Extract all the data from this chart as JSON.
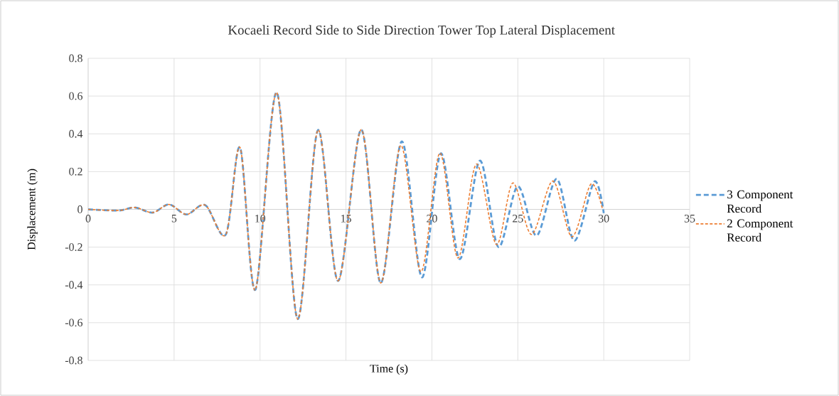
{
  "chart_data": {
    "type": "line",
    "title": "Kocaeli Record Side to Side Direction  Tower Top Lateral Displacement",
    "xlabel": "Time  (s)",
    "ylabel": "Displacement  (m)",
    "xlim": [
      0,
      35
    ],
    "xticks": [
      0,
      5,
      10,
      15,
      20,
      25,
      30,
      35
    ],
    "ylim": [
      -0.8,
      0.8
    ],
    "yticks": [
      -0.8,
      -0.6,
      -0.4,
      -0.2,
      0,
      0.2,
      0.4,
      0.6,
      0.8
    ],
    "grid": true,
    "legend": "right",
    "line_style": "dashed",
    "series": [
      {
        "name": "3 Component Record",
        "color": "#5b9bd5",
        "x": [
          0,
          1.76,
          2.72,
          3.75,
          4.71,
          5.72,
          6.82,
          8.01,
          8.84,
          9.73,
          10.97,
          12.18,
          13.37,
          14.54,
          15.89,
          17.02,
          18.25,
          19.42,
          20.52,
          21.62,
          22.79,
          23.86,
          24.99,
          26.09,
          27.26,
          28.29,
          29.45,
          30.0
        ],
        "values": [
          0,
          -0.006,
          0.01,
          -0.017,
          0.026,
          -0.027,
          0.022,
          -0.133,
          0.327,
          -0.425,
          0.619,
          -0.58,
          0.42,
          -0.379,
          0.422,
          -0.39,
          0.36,
          -0.36,
          0.296,
          -0.263,
          0.258,
          -0.199,
          0.122,
          -0.139,
          0.161,
          -0.166,
          0.147,
          -0.02
        ]
      },
      {
        "name": "2 Component Record",
        "color": "#ed7d31",
        "x": [
          0,
          1.76,
          2.72,
          3.75,
          4.71,
          5.72,
          6.82,
          8.01,
          8.84,
          9.73,
          10.97,
          12.18,
          13.37,
          14.54,
          15.89,
          17.02,
          18.19,
          19.36,
          20.46,
          21.51,
          22.59,
          23.75,
          24.71,
          25.8,
          27.04,
          28.15,
          29.25,
          29.93
        ],
        "values": [
          0,
          -0.006,
          0.01,
          -0.017,
          0.026,
          -0.027,
          0.022,
          -0.133,
          0.327,
          -0.425,
          0.619,
          -0.58,
          0.42,
          -0.379,
          0.422,
          -0.39,
          0.339,
          -0.33,
          0.298,
          -0.257,
          0.24,
          -0.186,
          0.14,
          -0.133,
          0.15,
          -0.145,
          0.134,
          0.0
        ]
      }
    ]
  }
}
